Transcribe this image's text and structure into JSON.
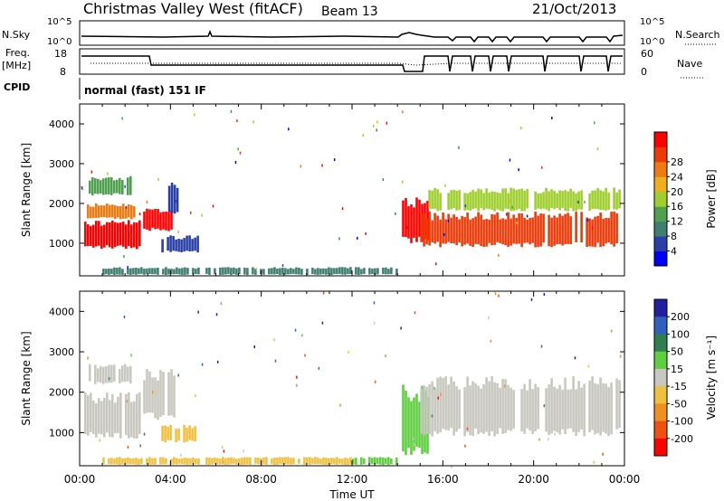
{
  "header": {
    "title": "Christmas Valley West (fitACF)",
    "beam": "Beam 13",
    "date": "21/Oct/2013"
  },
  "top_panels": {
    "nsky_label": "N.Sky",
    "nsky_ticks": [
      "10^5",
      "10^0"
    ],
    "nsearch_label": "N.Search",
    "nsearch_ticks": [
      "10^5",
      "10^0"
    ],
    "freq_label": "Freq.",
    "freq_unit": "[MHz]",
    "freq_ticks": [
      "18",
      "8"
    ],
    "nave_label": "Nave",
    "nave_ticks": [
      "60",
      "0"
    ],
    "cpid_label": "CPID",
    "cpid_text": "normal (fast) 151 IF"
  },
  "colors": {
    "power": [
      "#0000ff",
      "#2a3fa8",
      "#3f7f6f",
      "#4fa14f",
      "#9fcf2f",
      "#efb020",
      "#ef7a10",
      "#ef3a08",
      "#ff0000"
    ],
    "velocity": [
      "#1f1f9f",
      "#2f5fbf",
      "#2f7f4f",
      "#5fcf3f",
      "#c8c8c0",
      "#f0c040",
      "#f09020",
      "#f05010",
      "#ff0000"
    ]
  },
  "chart_data": [
    {
      "type": "heatmap",
      "name": "power",
      "xlabel": "",
      "ylabel": "Slant Range [km]",
      "xlim": [
        0,
        24
      ],
      "ylim": [
        180,
        4500
      ],
      "yticks": [
        "1000",
        "2000",
        "3000",
        "4000"
      ],
      "colorbar": {
        "label": "Power [dB]",
        "ticks": [
          "4",
          "8",
          "12",
          "16",
          "20",
          "24",
          "28"
        ]
      },
      "regions": [
        {
          "t0": 0.2,
          "t1": 2.6,
          "r0": 850,
          "r1": 1600,
          "color": "#ff0000"
        },
        {
          "t0": 0.2,
          "t1": 2.4,
          "r0": 1600,
          "r1": 2000,
          "color": "#ef7a10"
        },
        {
          "t0": 0.4,
          "t1": 2.2,
          "r0": 2200,
          "r1": 2700,
          "color": "#4fa14f"
        },
        {
          "t0": 2.8,
          "t1": 4.0,
          "r0": 1300,
          "r1": 1900,
          "color": "#ff0000"
        },
        {
          "t0": 3.9,
          "t1": 4.3,
          "r0": 1700,
          "r1": 2600,
          "color": "#2a3fa8"
        },
        {
          "t0": 3.6,
          "t1": 5.2,
          "r0": 750,
          "r1": 1200,
          "color": "#2a3fa8"
        },
        {
          "t0": 1.0,
          "t1": 14.0,
          "r0": 200,
          "r1": 400,
          "color": "#3f7f6f"
        },
        {
          "t0": 14.2,
          "t1": 15.3,
          "r0": 1000,
          "r1": 2200,
          "color": "#ff0000"
        },
        {
          "t0": 15.0,
          "t1": 23.8,
          "r0": 900,
          "r1": 1800,
          "color": "#ef3a08"
        },
        {
          "t0": 15.0,
          "t1": 23.8,
          "r0": 1800,
          "r1": 2400,
          "color": "#9fcf2f"
        }
      ]
    },
    {
      "type": "heatmap",
      "name": "velocity",
      "xlabel": "Time UT",
      "ylabel": "Slant Range [km]",
      "xlim": [
        0,
        24
      ],
      "ylim": [
        180,
        4500
      ],
      "xticks": [
        "00:00",
        "04:00",
        "08:00",
        "12:00",
        "16:00",
        "20:00",
        "00:00"
      ],
      "yticks": [
        "1000",
        "2000",
        "3000",
        "4000"
      ],
      "colorbar": {
        "label": "Velocity [m s⁻¹]",
        "ticks": [
          "200",
          "100",
          "50",
          "15",
          "-15",
          "-50",
          "-100",
          "-200"
        ]
      },
      "regions": [
        {
          "t0": 0.2,
          "t1": 2.6,
          "r0": 850,
          "r1": 2000,
          "color": "#c8c8c0"
        },
        {
          "t0": 0.4,
          "t1": 2.2,
          "r0": 2200,
          "r1": 2700,
          "color": "#c8c8c0"
        },
        {
          "t0": 2.8,
          "t1": 4.3,
          "r0": 1300,
          "r1": 2600,
          "color": "#c8c8c0"
        },
        {
          "t0": 3.6,
          "t1": 5.2,
          "r0": 750,
          "r1": 1200,
          "color": "#f0c040"
        },
        {
          "t0": 1.0,
          "t1": 12.0,
          "r0": 200,
          "r1": 400,
          "color": "#f0c040"
        },
        {
          "t0": 12.0,
          "t1": 14.0,
          "r0": 200,
          "r1": 400,
          "color": "#5fcf3f"
        },
        {
          "t0": 14.2,
          "t1": 15.3,
          "r0": 400,
          "r1": 2200,
          "color": "#5fcf3f"
        },
        {
          "t0": 15.0,
          "t1": 23.8,
          "r0": 900,
          "r1": 2400,
          "color": "#c8c8c0"
        }
      ]
    }
  ]
}
